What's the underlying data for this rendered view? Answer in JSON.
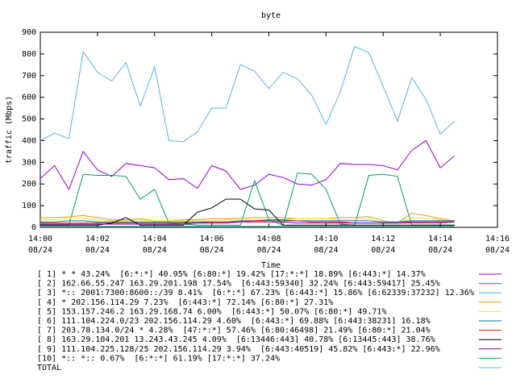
{
  "chart_data": {
    "type": "line",
    "title": "byte",
    "xlabel": "Time",
    "ylabel": "traffic (Mbps)",
    "ylim": [
      0,
      900
    ],
    "xlim_minutes": [
      0,
      16
    ],
    "grid": false,
    "legend_placement": "bottom",
    "y_ticks": [
      "0",
      "100",
      "200",
      "300",
      "400",
      "500",
      "600",
      "700",
      "800",
      "900"
    ],
    "x_ticks": [
      {
        "time": "14:00",
        "date": "08/24",
        "minute": 0
      },
      {
        "time": "14:02",
        "date": "08/24",
        "minute": 2
      },
      {
        "time": "14:04",
        "date": "08/24",
        "minute": 4
      },
      {
        "time": "14:06",
        "date": "08/24",
        "minute": 6
      },
      {
        "time": "14:08",
        "date": "08/24",
        "minute": 8
      },
      {
        "time": "14:10",
        "date": "08/24",
        "minute": 10
      },
      {
        "time": "14:12",
        "date": "08/24",
        "minute": 12
      },
      {
        "time": "14:14",
        "date": "08/24",
        "minute": 14
      },
      {
        "time": "14:16",
        "date": "08/24",
        "minute": 16
      }
    ],
    "series": [
      {
        "name": "[ 1] * * 43.24%  [6:*:*] 40.95% [6:80:*] 19.42% [17:*:*] 18.89% [6:443:*] 14.37%",
        "color": "#9400d3",
        "x": [
          0,
          0.5,
          1,
          1.5,
          2,
          2.5,
          3,
          3.5,
          4,
          4.5,
          5,
          5.5,
          6,
          6.5,
          7,
          7.5,
          8,
          8.5,
          9,
          9.5,
          10,
          10.5,
          11,
          11.5,
          12,
          12.5,
          13,
          13.5,
          14,
          14.5
        ],
        "y": [
          225,
          285,
          175,
          350,
          265,
          235,
          295,
          285,
          275,
          220,
          225,
          180,
          285,
          260,
          175,
          195,
          245,
          230,
          200,
          195,
          220,
          295,
          290,
          290,
          285,
          265,
          355,
          400,
          275,
          330
        ]
      },
      {
        "name": "[ 2] 162.66.55.247 163.29.201.198 17.54%  [6:443:59340] 32.24% [6:443:59417] 25.45%",
        "color": "#009e73",
        "x": [
          0,
          0.5,
          1,
          1.5,
          2,
          2.5,
          3,
          3.5,
          4,
          4.5,
          5,
          5.5,
          6,
          6.5,
          7,
          7.5,
          8,
          8.5,
          9,
          9.5,
          10,
          10.5,
          11,
          11.5,
          12,
          12.5,
          13,
          13.5,
          14,
          14.5
        ],
        "y": [
          10,
          10,
          10,
          245,
          240,
          240,
          235,
          130,
          175,
          20,
          15,
          10,
          10,
          10,
          10,
          215,
          35,
          10,
          250,
          245,
          175,
          15,
          10,
          240,
          245,
          235,
          10,
          10,
          10,
          10
        ]
      },
      {
        "name": "[ 3] *:: 2001:7300:8600::/39 8.41%  [6:*:*] 67.23% [6:443:*] 15.86% [6:62339:37232] 12.36%",
        "color": "#56b4e9",
        "x": [
          0,
          0.5,
          1,
          1.5,
          2,
          2.5,
          3,
          3.5,
          4,
          4.5,
          5,
          5.5,
          6,
          6.5,
          7,
          7.5,
          8,
          8.5,
          9,
          9.5,
          10,
          10.5,
          11,
          11.5,
          12,
          12.5,
          13,
          13.5,
          14,
          14.5
        ],
        "y": [
          400,
          435,
          410,
          810,
          715,
          675,
          760,
          560,
          740,
          400,
          395,
          440,
          550,
          550,
          750,
          720,
          640,
          715,
          685,
          610,
          475,
          625,
          835,
          805,
          650,
          490,
          690,
          590,
          430,
          490
        ]
      },
      {
        "name": "[ 4] * 202.156.114.29 7.23%  [6:443:*] 72.14% [6:80:*] 27.31%",
        "color": "#e69f00",
        "x": [
          0,
          0.5,
          1,
          1.5,
          2,
          2.5,
          3,
          3.5,
          4,
          4.5,
          5,
          5.5,
          6,
          6.5,
          7,
          7.5,
          8,
          8.5,
          9,
          9.5,
          10,
          10.5,
          11,
          11.5,
          12,
          12.5,
          13,
          13.5,
          14,
          14.5
        ],
        "y": [
          45,
          45,
          48,
          55,
          45,
          35,
          35,
          40,
          30,
          30,
          35,
          35,
          40,
          40,
          42,
          45,
          45,
          45,
          40,
          40,
          40,
          45,
          45,
          50,
          30,
          20,
          65,
          55,
          40,
          30
        ]
      },
      {
        "name": "[ 5] 153.157.246.2 163.29.168.74 6.00%  [6:443:*] 50.07% [6:80:*] 49.71%",
        "color": "#f0e442",
        "x": [
          0,
          0.5,
          1,
          1.5,
          2,
          2.5,
          3,
          3.5,
          4,
          4.5,
          5,
          5.5,
          6,
          6.5,
          7,
          7.5,
          8,
          8.5,
          9,
          9.5,
          10,
          10.5,
          11,
          11.5,
          12,
          12.5,
          13,
          13.5,
          14,
          14.5
        ],
        "y": [
          35,
          35,
          40,
          40,
          35,
          30,
          30,
          35,
          30,
          30,
          30,
          30,
          30,
          35,
          35,
          35,
          35,
          35,
          40,
          40,
          40,
          35,
          35,
          40,
          20,
          20,
          45,
          40,
          35,
          25
        ]
      },
      {
        "name": "[ 6] 111.104.224.0/23 202.156.114.29 4.60%  [6:443:*] 69.88% [6:443:38231] 16.18%",
        "color": "#0072b2",
        "x": [
          0,
          0.5,
          1,
          1.5,
          2,
          2.5,
          3,
          3.5,
          4,
          4.5,
          5,
          5.5,
          6,
          6.5,
          7,
          7.5,
          8,
          8.5,
          9,
          9.5,
          10,
          10.5,
          11,
          11.5,
          12,
          12.5,
          13,
          13.5,
          14,
          14.5
        ],
        "y": [
          25,
          25,
          30,
          30,
          25,
          25,
          25,
          25,
          25,
          25,
          25,
          25,
          25,
          25,
          30,
          30,
          30,
          30,
          30,
          30,
          30,
          30,
          30,
          30,
          25,
          25,
          30,
          30,
          30,
          30
        ]
      },
      {
        "name": "[ 7] 203.78.134.0/24 * 4.28%  [47:*:*] 57.46% [6:80:46498] 21.49% [6:80:*] 21.04%",
        "color": "#e51e10",
        "x": [
          0,
          0.5,
          1,
          1.5,
          2,
          2.5,
          3,
          3.5,
          4,
          4.5,
          5,
          5.5,
          6,
          6.5,
          7,
          7.5,
          8,
          8.5,
          9,
          9.5,
          10,
          10.5,
          11,
          11.5,
          12,
          12.5,
          13,
          13.5,
          14,
          14.5
        ],
        "y": [
          20,
          20,
          20,
          20,
          20,
          20,
          20,
          20,
          20,
          20,
          20,
          20,
          25,
          25,
          25,
          30,
          35,
          35,
          30,
          25,
          25,
          25,
          20,
          20,
          20,
          20,
          20,
          20,
          20,
          25
        ]
      },
      {
        "name": "[ 8] 163.29.104.201 13.243.43.245 4.09%  [6:13446:443] 40.78% [6:13445:443] 38.76%",
        "color": "#000000",
        "x": [
          0,
          0.5,
          1,
          1.5,
          2,
          2.5,
          3,
          3.5,
          4,
          4.5,
          5,
          5.5,
          6,
          6.5,
          7,
          7.5,
          8,
          8.5,
          9,
          9.5,
          10,
          10.5,
          11,
          11.5,
          12,
          12.5,
          13,
          13.5,
          14,
          14.5
        ],
        "y": [
          10,
          10,
          10,
          10,
          10,
          20,
          45,
          10,
          10,
          10,
          10,
          70,
          90,
          130,
          130,
          85,
          80,
          10,
          10,
          10,
          10,
          10,
          10,
          10,
          10,
          10,
          10,
          10,
          10,
          10
        ]
      },
      {
        "name": "[ 9] 111.104.225.128/25 202.156.114.29 3.94%  [6:443:40519] 45.82% [6:443:*] 22.96%",
        "color": "#7a00b0",
        "x": [
          0,
          0.5,
          1,
          1.5,
          2,
          2.5,
          3,
          3.5,
          4,
          4.5,
          5,
          5.5,
          6,
          6.5,
          7,
          7.5,
          8,
          8.5,
          9,
          9.5,
          10,
          10.5,
          11,
          11.5,
          12,
          12.5,
          13,
          13.5,
          14,
          14.5
        ],
        "y": [
          15,
          15,
          15,
          15,
          15,
          15,
          15,
          15,
          15,
          15,
          15,
          20,
          20,
          20,
          25,
          25,
          25,
          25,
          20,
          20,
          20,
          20,
          20,
          20,
          20,
          20,
          25,
          25,
          25,
          25
        ]
      },
      {
        "name": "[10] *:: *:: 0.67%  [6:*:*] 61.19% [17:*:*] 37.24%",
        "color": "#1aa58a",
        "x": [
          0,
          0.5,
          1,
          1.5,
          2,
          2.5,
          3,
          3.5,
          4,
          4.5,
          5,
          5.5,
          6,
          6.5,
          7,
          7.5,
          8,
          8.5,
          9,
          9.5,
          10,
          10.5,
          11,
          11.5,
          12,
          12.5,
          13,
          13.5,
          14,
          14.5
        ],
        "y": [
          5,
          5,
          5,
          5,
          5,
          5,
          5,
          5,
          5,
          5,
          5,
          5,
          5,
          5,
          5,
          5,
          5,
          5,
          5,
          5,
          5,
          5,
          5,
          5,
          5,
          5,
          5,
          5,
          5,
          5
        ]
      },
      {
        "name": "TOTAL",
        "color": "#56b4e9",
        "x": [],
        "y": []
      }
    ]
  }
}
